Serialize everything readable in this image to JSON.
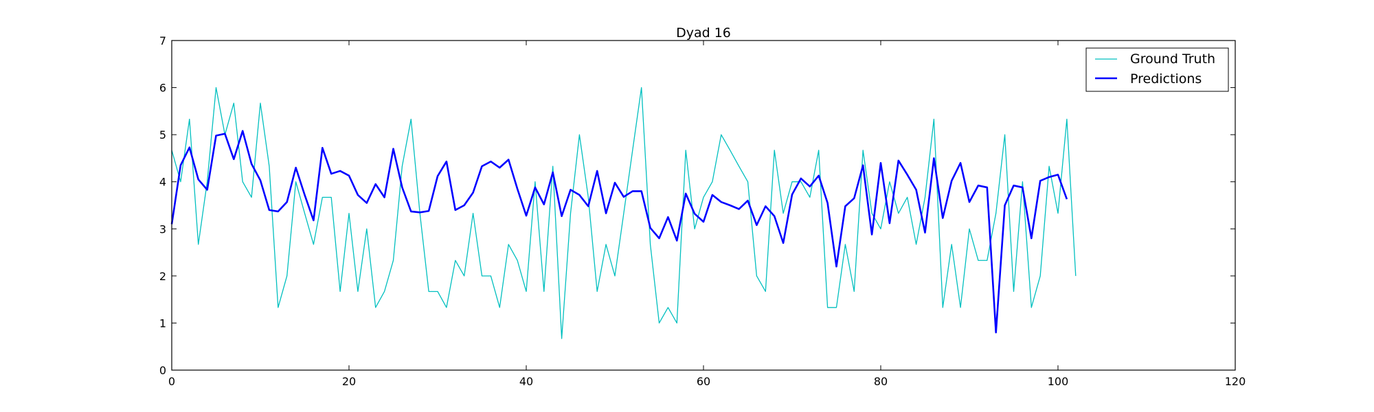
{
  "chart_data": {
    "type": "line",
    "title": "Dyad 16",
    "xlabel": "",
    "ylabel": "",
    "xlim": [
      0,
      120
    ],
    "ylim": [
      0,
      7
    ],
    "xticks": [
      0,
      20,
      40,
      60,
      80,
      100,
      120
    ],
    "yticks": [
      0,
      1,
      2,
      3,
      4,
      5,
      6,
      7
    ],
    "grid": false,
    "legend_position": "top-right",
    "series": [
      {
        "name": "Ground Truth",
        "color": "#00bfbf",
        "line_width": "thin",
        "x_start": 0,
        "values": [
          4.67,
          4.0,
          5.33,
          2.67,
          4.0,
          6.0,
          5.0,
          5.67,
          4.0,
          3.67,
          5.67,
          4.33,
          1.33,
          2.0,
          4.0,
          3.33,
          2.67,
          3.67,
          3.67,
          1.67,
          3.33,
          1.67,
          3.0,
          1.33,
          1.67,
          2.33,
          4.33,
          5.33,
          3.33,
          1.67,
          1.67,
          1.33,
          2.33,
          2.0,
          3.33,
          2.0,
          2.0,
          1.33,
          2.67,
          2.33,
          1.67,
          4.0,
          1.67,
          4.33,
          0.67,
          3.33,
          5.0,
          3.67,
          1.67,
          2.67,
          2.0,
          3.33,
          4.67,
          6.0,
          2.67,
          1.0,
          1.33,
          1.0,
          4.67,
          3.0,
          3.67,
          4.0,
          5.0,
          4.67,
          4.33,
          4.0,
          2.0,
          1.67,
          4.67,
          3.33,
          4.0,
          4.0,
          3.67,
          4.67,
          1.33,
          1.33,
          2.67,
          1.67,
          4.67,
          3.33,
          3.0,
          4.0,
          3.33,
          3.67,
          2.67,
          3.67,
          5.33,
          1.33,
          2.67,
          1.33,
          3.0,
          2.33,
          2.33,
          3.33,
          5.0,
          1.67,
          4.0,
          1.33,
          2.0,
          4.33,
          3.33,
          5.33,
          2.0
        ]
      },
      {
        "name": "Predictions",
        "color": "#0000ff",
        "line_width": "thick",
        "x_start": 0,
        "values": [
          3.1,
          4.35,
          4.73,
          4.05,
          3.83,
          4.98,
          5.02,
          4.48,
          5.08,
          4.38,
          4.03,
          3.4,
          3.37,
          3.57,
          4.3,
          3.72,
          3.18,
          4.72,
          4.17,
          4.23,
          4.13,
          3.72,
          3.55,
          3.95,
          3.67,
          4.7,
          3.88,
          3.37,
          3.35,
          3.38,
          4.12,
          4.43,
          3.4,
          3.5,
          3.77,
          4.33,
          4.43,
          4.3,
          4.47,
          3.85,
          3.28,
          3.88,
          3.52,
          4.2,
          3.27,
          3.83,
          3.72,
          3.48,
          4.23,
          3.33,
          3.98,
          3.68,
          3.8,
          3.8,
          3.02,
          2.8,
          3.25,
          2.75,
          3.75,
          3.32,
          3.15,
          3.72,
          3.57,
          3.5,
          3.42,
          3.6,
          3.08,
          3.48,
          3.27,
          2.7,
          3.73,
          4.07,
          3.9,
          4.13,
          3.55,
          2.2,
          3.48,
          3.65,
          4.35,
          2.88,
          4.4,
          3.12,
          4.45,
          4.15,
          3.83,
          2.92,
          4.5,
          3.23,
          4.02,
          4.4,
          3.57,
          3.92,
          3.88,
          0.8,
          3.5,
          3.92,
          3.88,
          2.8,
          4.02,
          4.1,
          4.15,
          3.63
        ]
      }
    ]
  }
}
